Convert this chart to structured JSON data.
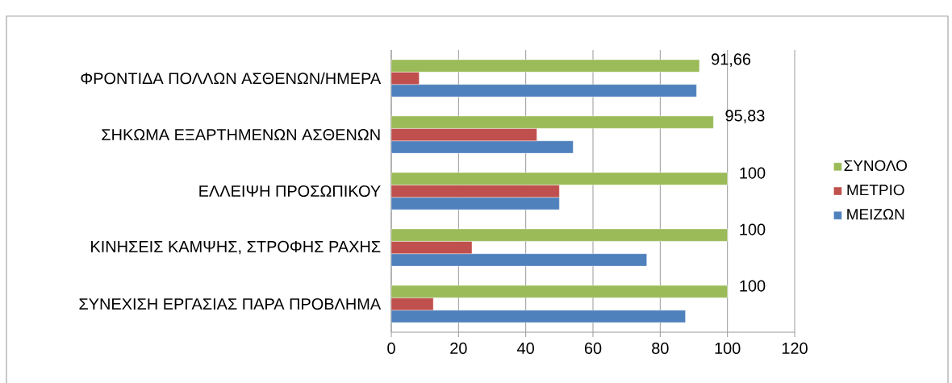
{
  "chart_data": {
    "type": "bar",
    "orientation": "horizontal",
    "categories": [
      "ΦΡΟΝΤΙΔΑ ΠΟΛΛΩΝ ΑΣΘΕΝΩΝ/ΗΜΕΡΑ",
      "ΣΗΚΩΜΑ ΕΞΑΡΤΗΜΕΝΩΝ ΑΣΘΕΝΩΝ",
      "ΕΛΛΕΙΨΗ ΠΡΟΣΩΠΙΚΟΥ",
      "ΚΙΝΗΣΕΙΣ ΚΑΜΨΗΣ, ΣΤΡΟΦΗΣ ΡΑΧΗΣ",
      "ΣΥΝΕΧΙΣΗ ΕΡΓΑΣΙΑΣ ΠΑΡΑ ΠΡΟΒΛΗΜΑ"
    ],
    "series": [
      {
        "name": "ΜΕΙΖΩΝ",
        "color": "#4f81bd",
        "values": [
          90.8,
          54.1,
          50,
          76,
          87.5
        ]
      },
      {
        "name": "ΜΕΤΡΙΟ",
        "color": "#c0504d",
        "values": [
          8.3,
          43.3,
          50,
          24,
          12.5
        ]
      },
      {
        "name": "ΣΥΝΟΛΟ",
        "color": "#9bbb59",
        "values": [
          91.66,
          95.83,
          100,
          100,
          100
        ],
        "value_labels": [
          "91,66",
          "95,83",
          "100",
          "100",
          "100"
        ]
      }
    ],
    "xlim": [
      0,
      120
    ],
    "xticks": [
      0,
      20,
      40,
      60,
      80,
      100,
      120
    ],
    "grid": "x",
    "legend": "right"
  }
}
